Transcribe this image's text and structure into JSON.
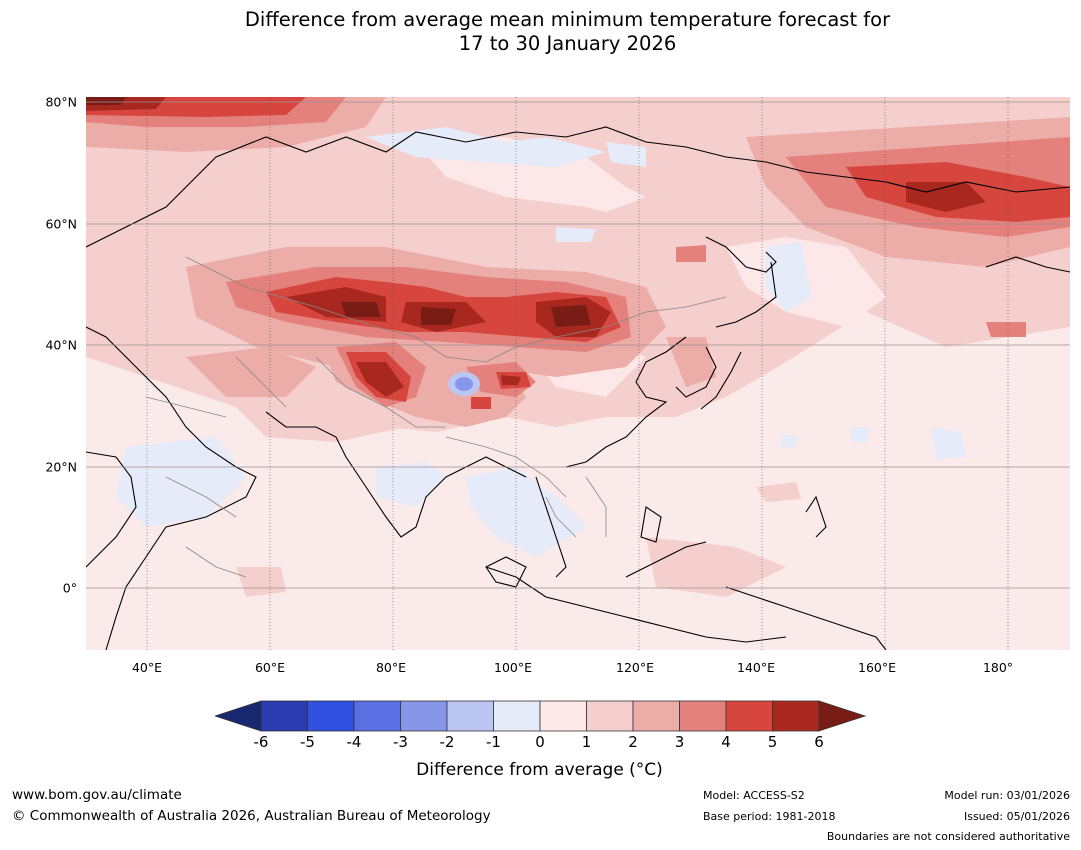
{
  "title": {
    "line1": "Difference from average mean minimum temperature forecast for",
    "line2": "17 to 30 January 2026"
  },
  "map": {
    "region": "Asia",
    "lat_range": [
      -10,
      80
    ],
    "lon_range": [
      30,
      190
    ],
    "lat_labels": [
      "80°N",
      "60°N",
      "40°N",
      "20°N",
      "0°"
    ],
    "lat_values": [
      80,
      60,
      40,
      20,
      0
    ],
    "lon_labels": [
      "40°E",
      "60°E",
      "80°E",
      "100°E",
      "120°E",
      "140°E",
      "160°E",
      "180°"
    ],
    "lon_values": [
      40,
      60,
      80,
      100,
      120,
      140,
      160,
      180
    ]
  },
  "colorbar": {
    "tick_labels": [
      "-6",
      "-5",
      "-4",
      "-3",
      "-2",
      "-1",
      "0",
      "1",
      "2",
      "3",
      "4",
      "5",
      "6"
    ],
    "colors": [
      "#18286e",
      "#2a3cb0",
      "#3050e0",
      "#5a70e2",
      "#8896ea",
      "#bcc6f3",
      "#e6ebfa",
      "#fce8e8",
      "#f4cfcd",
      "#ecaca8",
      "#e4817c",
      "#d6463e",
      "#a8281f",
      "#7a1c16"
    ],
    "label": "Difference from average (°C)"
  },
  "footer": {
    "url": "www.bom.gov.au/climate",
    "copyright": "© Commonwealth of Australia 2026, Australian Bureau of Meteorology",
    "model": "Model: ACCESS-S2",
    "base_period": "Base period: 1981-2018",
    "model_run": "Model run: 03/01/2026",
    "issued": "Issued: 05/01/2026",
    "disclaimer": "Boundaries are not considered authoritative"
  }
}
